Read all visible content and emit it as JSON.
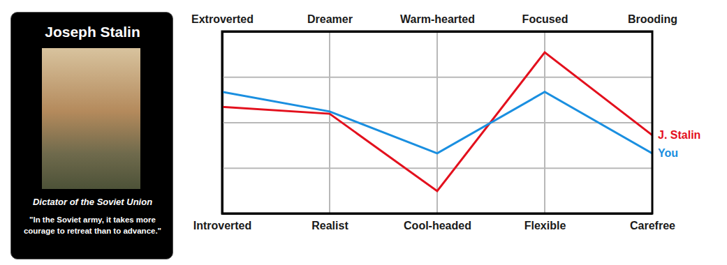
{
  "card": {
    "title": "Joseph Stalin",
    "subtitle": "Dictator of the Soviet Union",
    "quote": "\"In the Soviet army, it takes more courage to retreat than to advance.\""
  },
  "chart_data": {
    "type": "line",
    "categories": [
      "Introverted",
      "Realist",
      "Cool-headed",
      "Flexible",
      "Carefree"
    ],
    "categories_top": [
      "Extroverted",
      "Dreamer",
      "Warm-hearted",
      "Focused",
      "Brooding"
    ],
    "series": [
      {
        "name": "J. Stalin",
        "color": "#e3101d",
        "values": [
          2.34,
          2.19,
          0.49,
          3.54,
          1.72
        ]
      },
      {
        "name": "You",
        "color": "#1a8fe0",
        "values": [
          2.67,
          2.24,
          1.32,
          2.67,
          1.32
        ]
      }
    ],
    "ylim": [
      0,
      4
    ],
    "yticks": [
      0,
      1,
      2,
      3,
      4
    ],
    "grid": true,
    "tick_labels": "x"
  }
}
